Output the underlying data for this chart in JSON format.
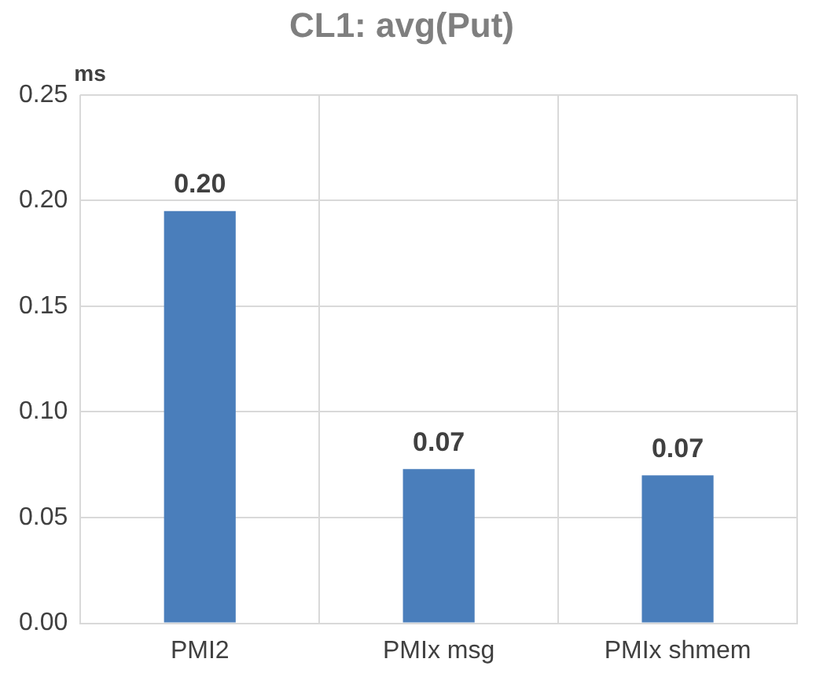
{
  "chart_data": {
    "type": "bar",
    "title": "CL1: avg(Put)",
    "ylabel": "ms",
    "categories": [
      "PMI2",
      "PMIx msg",
      "PMIx shmem"
    ],
    "values": [
      0.195,
      0.073,
      0.07
    ],
    "value_labels": [
      "0.20",
      "0.07",
      "0.07"
    ],
    "color": "#4a7ebb",
    "ylim": [
      0,
      0.25
    ],
    "yticks": [
      {
        "value": 0,
        "label": "0.00"
      },
      {
        "value": 0.05,
        "label": "0.05"
      },
      {
        "value": 0.1,
        "label": "0.10"
      },
      {
        "value": 0.15,
        "label": "0.15"
      },
      {
        "value": 0.2,
        "label": "0.20"
      },
      {
        "value": 0.25,
        "label": "0.25"
      }
    ],
    "grid": true,
    "legend": false
  }
}
